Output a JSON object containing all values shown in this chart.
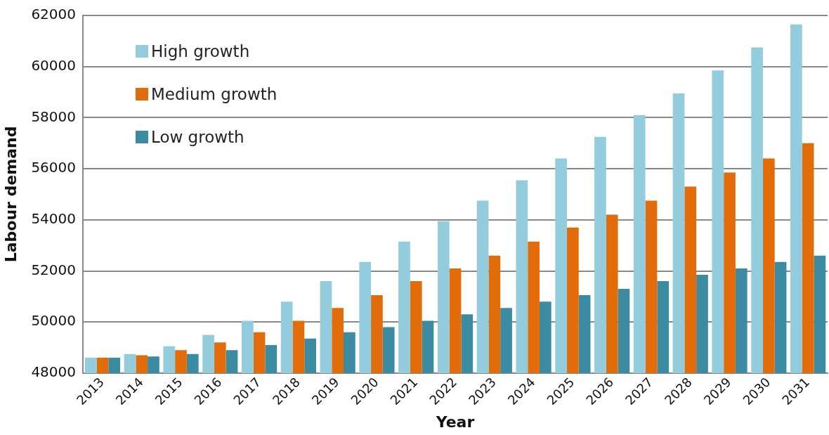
{
  "chart_data": {
    "type": "bar",
    "xlabel": "Year",
    "ylabel": "Labour demand",
    "categories": [
      "2013",
      "2014",
      "2015",
      "2016",
      "2017",
      "2018",
      "2019",
      "2020",
      "2021",
      "2022",
      "2023",
      "2024",
      "2025",
      "2026",
      "2027",
      "2028",
      "2029",
      "2030",
      "2031"
    ],
    "series": [
      {
        "name": "High growth",
        "color": "#93cddd",
        "values": [
          48600,
          48750,
          49050,
          49500,
          50050,
          50800,
          51600,
          52350,
          53150,
          53950,
          54750,
          55550,
          56400,
          57250,
          58100,
          58950,
          59850,
          60750,
          61650
        ]
      },
      {
        "name": "Medium growth",
        "color": "#e36c0a",
        "values": [
          48600,
          48700,
          48900,
          49200,
          49600,
          50050,
          50550,
          51050,
          51600,
          52100,
          52600,
          53150,
          53700,
          54200,
          54750,
          55300,
          55850,
          56400,
          57000
        ]
      },
      {
        "name": "Low growth",
        "color": "#3b8ba3",
        "values": [
          48600,
          48650,
          48750,
          48900,
          49100,
          49350,
          49600,
          49800,
          50050,
          50300,
          50550,
          50800,
          51050,
          51300,
          51600,
          51850,
          52100,
          52350,
          52600
        ]
      }
    ],
    "ylim": [
      48000,
      62000
    ],
    "yticks": [
      48000,
      50000,
      52000,
      54000,
      56000,
      58000,
      60000,
      62000
    ],
    "grid": "y",
    "legend": "top left"
  }
}
